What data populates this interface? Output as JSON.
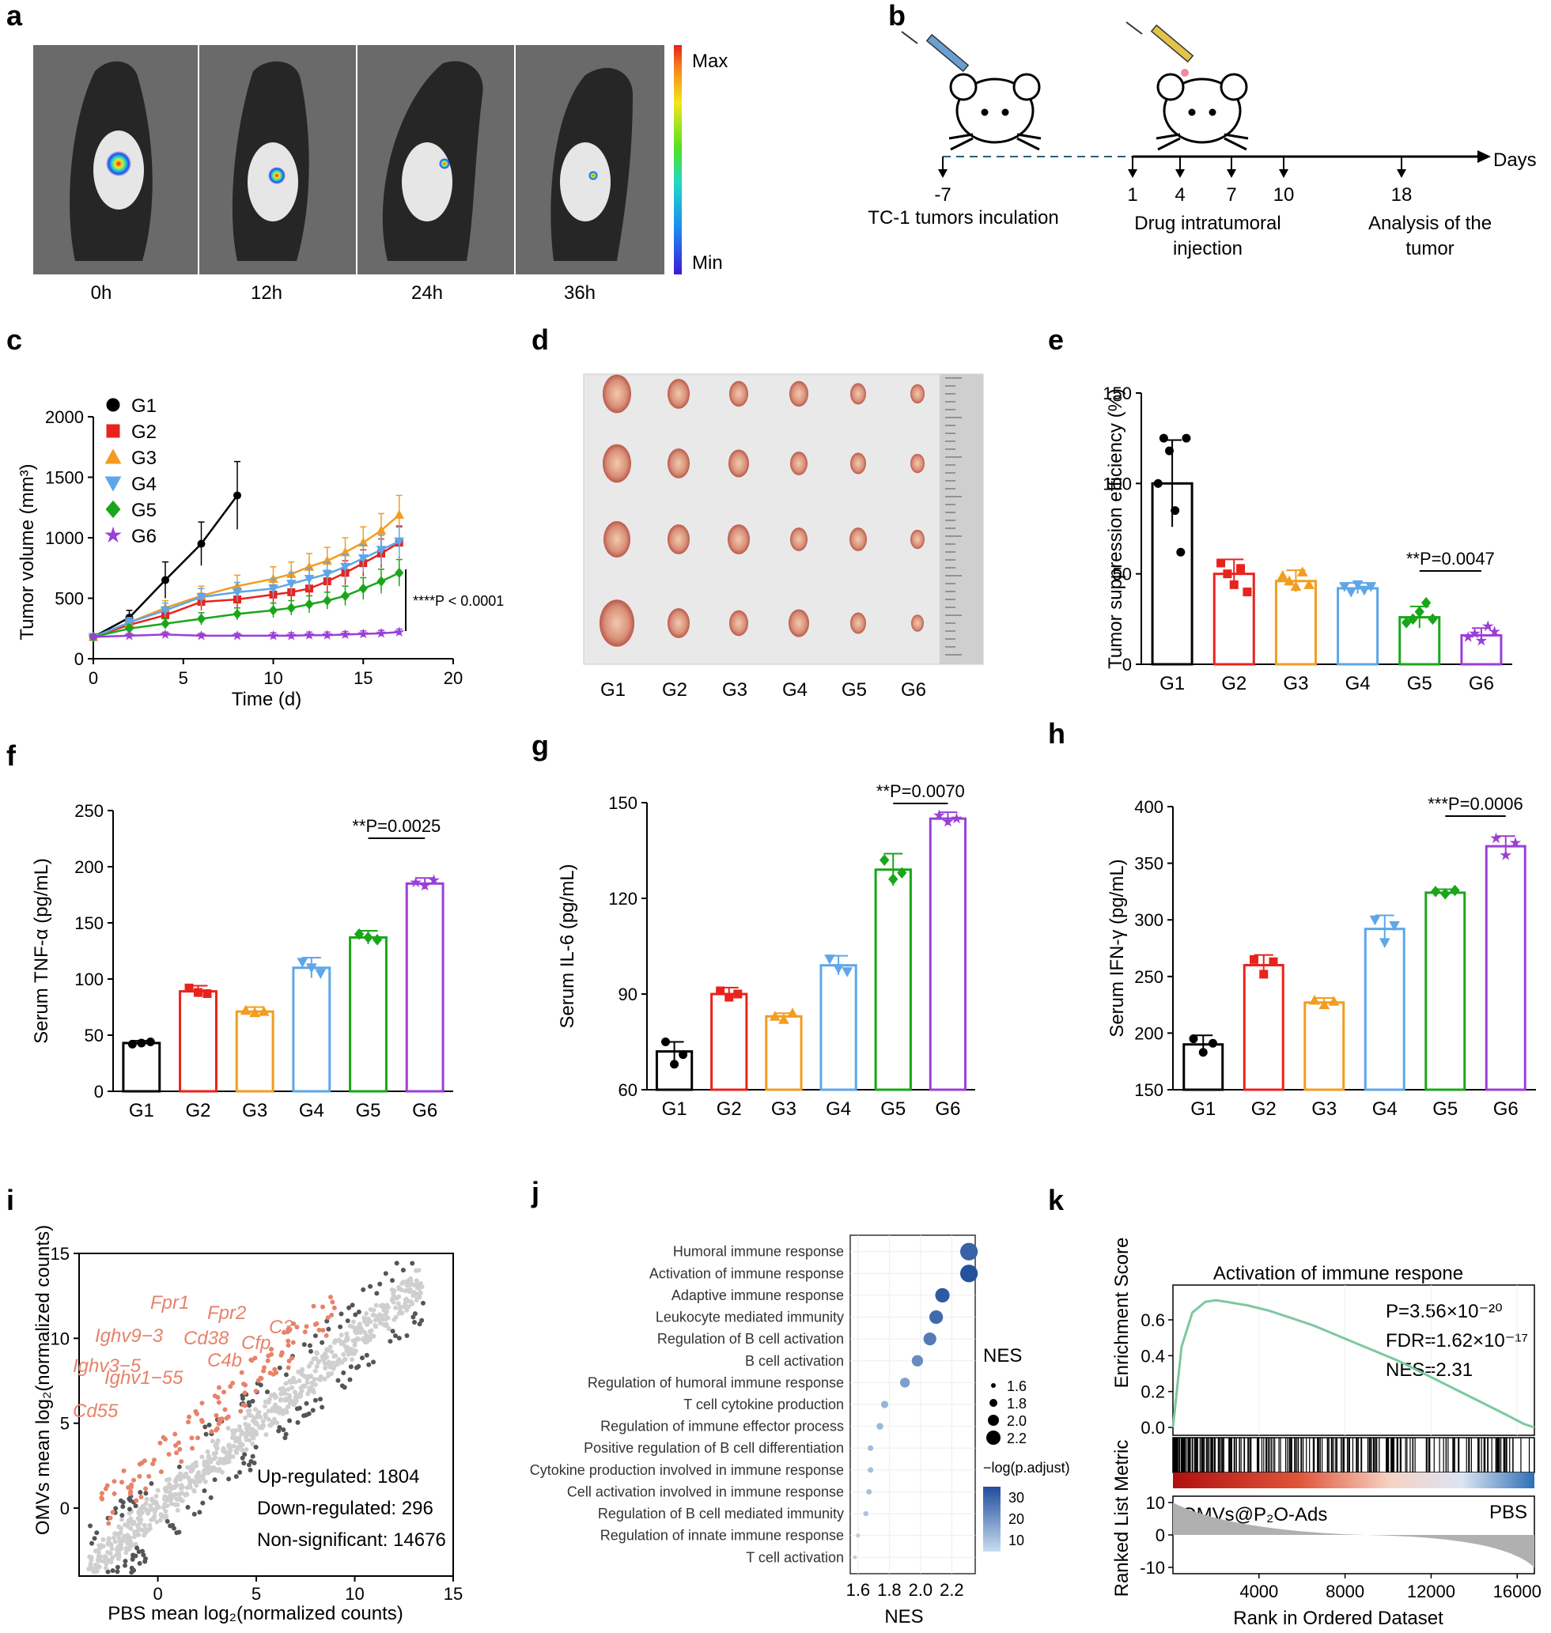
{
  "panel_labels": [
    "a",
    "b",
    "c",
    "d",
    "e",
    "f",
    "g",
    "h",
    "i",
    "j",
    "k"
  ],
  "colors": {
    "G1": "#000000",
    "G2": "#e8231c",
    "G3": "#f39c1f",
    "G4": "#5ea6e8",
    "G5": "#1aa61a",
    "G6": "#9b3fd6",
    "gsea_line": "#7cc8a0",
    "volcano_sig": "#555555",
    "volcano_ns": "#cfcfcf",
    "volcano_hl": "#e8826a"
  },
  "panel_a": {
    "time_labels": [
      "0h",
      "12h",
      "24h",
      "36h"
    ],
    "scale_max": "Max",
    "scale_min": "Min"
  },
  "panel_b": {
    "days": [
      "-7",
      "1",
      "4",
      "7",
      "10",
      "18"
    ],
    "axis_label": "Days",
    "label_inoculation": "TC-1 tumors inculation",
    "label_injection_1": "Drug intratumoral",
    "label_injection_2": "injection",
    "label_analysis_1": "Analysis of the",
    "label_analysis_2": "tumor"
  },
  "panel_d": {
    "groups": [
      "G1",
      "G2",
      "G3",
      "G4",
      "G5",
      "G6"
    ]
  },
  "chart_data": [
    {
      "panel": "c",
      "type": "line",
      "xlabel": "Time (d)",
      "ylabel": "Tumor volume (mm³)",
      "xlim": [
        0,
        20
      ],
      "ylim": [
        0,
        2000
      ],
      "xticks": [
        "0",
        "5",
        "10",
        "15",
        "20"
      ],
      "yticks": [
        "0",
        "500",
        "1000",
        "1500",
        "2000"
      ],
      "annotation": "****P < 0.0001",
      "series": [
        {
          "name": "G1",
          "marker": "circle",
          "x": [
            0,
            2,
            4,
            6,
            8
          ],
          "y": [
            180,
            340,
            650,
            950,
            1350
          ],
          "err": [
            20,
            60,
            150,
            180,
            280
          ]
        },
        {
          "name": "G2",
          "marker": "square",
          "x": [
            0,
            2,
            4,
            6,
            8,
            10,
            11,
            12,
            13,
            14,
            15,
            16,
            17
          ],
          "y": [
            180,
            280,
            360,
            470,
            490,
            530,
            550,
            580,
            640,
            710,
            790,
            870,
            960
          ],
          "err": [
            20,
            40,
            60,
            70,
            70,
            80,
            80,
            90,
            90,
            100,
            110,
            120,
            130
          ]
        },
        {
          "name": "G3",
          "marker": "triangle",
          "x": [
            0,
            2,
            4,
            6,
            8,
            10,
            11,
            12,
            13,
            14,
            15,
            16,
            17
          ],
          "y": [
            180,
            300,
            420,
            520,
            600,
            660,
            700,
            760,
            810,
            880,
            960,
            1060,
            1190
          ],
          "err": [
            20,
            40,
            60,
            80,
            90,
            100,
            100,
            110,
            110,
            120,
            130,
            140,
            160
          ]
        },
        {
          "name": "G4",
          "marker": "triangle-down",
          "x": [
            0,
            2,
            4,
            6,
            8,
            10,
            11,
            12,
            13,
            14,
            15,
            16,
            17
          ],
          "y": [
            180,
            300,
            400,
            510,
            550,
            580,
            620,
            660,
            700,
            760,
            830,
            900,
            970
          ],
          "err": [
            20,
            40,
            60,
            70,
            80,
            80,
            90,
            90,
            100,
            100,
            110,
            120,
            130
          ]
        },
        {
          "name": "G5",
          "marker": "diamond",
          "x": [
            0,
            2,
            4,
            6,
            8,
            10,
            11,
            12,
            13,
            14,
            15,
            16,
            17
          ],
          "y": [
            180,
            250,
            290,
            330,
            370,
            400,
            420,
            450,
            480,
            520,
            580,
            640,
            710
          ],
          "err": [
            20,
            30,
            40,
            50,
            50,
            60,
            60,
            70,
            70,
            80,
            90,
            100,
            110
          ]
        },
        {
          "name": "G6",
          "marker": "star",
          "x": [
            0,
            2,
            4,
            6,
            8,
            10,
            11,
            12,
            13,
            14,
            15,
            16,
            17
          ],
          "y": [
            180,
            190,
            200,
            190,
            190,
            190,
            190,
            195,
            195,
            200,
            205,
            210,
            220
          ],
          "err": [
            20,
            20,
            20,
            20,
            20,
            25,
            25,
            25,
            25,
            25,
            25,
            25,
            25
          ]
        }
      ]
    },
    {
      "panel": "e",
      "type": "bar",
      "ylabel": "Tumor suppression efficiency (%)",
      "categories": [
        "G1",
        "G2",
        "G3",
        "G4",
        "G5",
        "G6"
      ],
      "values": [
        100,
        50,
        46,
        42,
        26,
        16
      ],
      "err": [
        24,
        8,
        6,
        3,
        6,
        4
      ],
      "ylim": [
        0,
        150
      ],
      "yticks": [
        "0",
        "50",
        "100",
        "150"
      ],
      "annotation": "**P=0.0047",
      "annotation_pair": [
        "G5",
        "G6"
      ],
      "points": [
        [
          100,
          125,
          118,
          85,
          62,
          125
        ],
        [
          56,
          50,
          44,
          53,
          40
        ],
        [
          49,
          46,
          43,
          51,
          44
        ],
        [
          43,
          40,
          44,
          41,
          43
        ],
        [
          23,
          25,
          29,
          34,
          25
        ],
        [
          15,
          17,
          13,
          21,
          18
        ]
      ]
    },
    {
      "panel": "f",
      "type": "bar",
      "ylabel": "Serum TNF-α (pg/mL)",
      "categories": [
        "G1",
        "G2",
        "G3",
        "G4",
        "G5",
        "G6"
      ],
      "values": [
        43,
        89,
        71,
        110,
        137,
        185
      ],
      "err": [
        2,
        5,
        4,
        9,
        6,
        5
      ],
      "ylim": [
        0,
        250
      ],
      "yticks": [
        "0",
        "50",
        "100",
        "150",
        "200",
        "250"
      ],
      "annotation": "**P=0.0025",
      "annotation_pair": [
        "G5",
        "G6"
      ],
      "points": [
        [
          42,
          43,
          44
        ],
        [
          92,
          88,
          87
        ],
        [
          72,
          70,
          71
        ],
        [
          115,
          110,
          105
        ],
        [
          140,
          137,
          135
        ],
        [
          186,
          183,
          188
        ]
      ]
    },
    {
      "panel": "g",
      "type": "bar",
      "ylabel": "Serum IL-6 (pg/mL)",
      "categories": [
        "G1",
        "G2",
        "G3",
        "G4",
        "G5",
        "G6"
      ],
      "values": [
        72,
        90,
        83,
        99,
        129,
        145
      ],
      "err": [
        3,
        2,
        1,
        3,
        5,
        2
      ],
      "ylim": [
        60,
        150
      ],
      "yticks": [
        "60",
        "90",
        "120",
        "150"
      ],
      "annotation": "**P=0.0070",
      "annotation_pair": [
        "G5",
        "G6"
      ],
      "points": [
        [
          75,
          68,
          71
        ],
        [
          91,
          89,
          90
        ],
        [
          83,
          82,
          84
        ],
        [
          101,
          98,
          97
        ],
        [
          132,
          126,
          128
        ],
        [
          146,
          144,
          145
        ]
      ]
    },
    {
      "panel": "h",
      "type": "bar",
      "ylabel": "Serum IFN-γ (pg/mL)",
      "categories": [
        "G1",
        "G2",
        "G3",
        "G4",
        "G5",
        "G6"
      ],
      "values": [
        190,
        260,
        227,
        292,
        324,
        365
      ],
      "err": [
        8,
        9,
        4,
        12,
        3,
        9
      ],
      "ylim": [
        150,
        400
      ],
      "yticks": [
        "150",
        "200",
        "250",
        "300",
        "350",
        "400"
      ],
      "annotation": "***P=0.0006",
      "annotation_pair": [
        "G5",
        "G6"
      ],
      "points": [
        [
          195,
          183,
          191
        ],
        [
          265,
          252,
          263
        ],
        [
          229,
          225,
          228
        ],
        [
          300,
          280,
          295
        ],
        [
          325,
          323,
          326
        ],
        [
          372,
          357,
          368
        ]
      ]
    },
    {
      "panel": "i",
      "type": "scatter",
      "xlabel": "PBS mean log₂(normalized counts)",
      "ylabel": "OMVs mean log₂(normalized counts)",
      "xlim": [
        -4,
        15
      ],
      "ylim": [
        -4,
        15
      ],
      "xticks": [
        "0",
        "5",
        "10",
        "15"
      ],
      "yticks": [
        "0",
        "5",
        "10",
        "15"
      ],
      "up_regulated": "Up-regulated: 1804",
      "down_regulated": "Down-regulated: 296",
      "non_significant": "Non-significant: 14676",
      "gene_labels": [
        "Fpr1",
        "Fpr2",
        "C3",
        "Ighv9−3",
        "Cd38",
        "Cfp",
        "C4b",
        "Ighv3−5",
        "Ighv1−55",
        "Cd55"
      ]
    },
    {
      "panel": "j",
      "type": "scatter",
      "xlabel": "NES",
      "terms": [
        "Humoral immune response",
        "Activation of immune response",
        "Adaptive immune response",
        "Leukocyte mediated immunity",
        "Regulation of B cell activation",
        "B cell activation",
        "Regulation of humoral immune response",
        "T cell cytokine production",
        "Regulation of immune effector process",
        "Positive regulation of B cell differentiation",
        "Cytokine production involved in immune response",
        "Cell activation involved in immune response",
        "Regulation of B cell mediated immunity",
        "Regulation of innate immune response",
        "T cell activation"
      ],
      "nes": [
        2.31,
        2.31,
        2.14,
        2.1,
        2.06,
        1.98,
        1.9,
        1.77,
        1.74,
        1.68,
        1.68,
        1.67,
        1.65,
        1.6,
        1.58
      ],
      "neglog_padj": [
        30,
        34,
        32,
        28,
        24,
        20,
        15,
        10,
        9,
        8,
        7,
        7,
        6,
        4,
        3
      ],
      "xlim": [
        1.55,
        2.35
      ],
      "xticks": [
        "1.6",
        "1.8",
        "2.0",
        "2.2"
      ],
      "size_legend_title": "NES",
      "size_legend_values": [
        "1.6",
        "1.8",
        "2.0",
        "2.2"
      ],
      "color_legend_title": "−log(p.adjust)",
      "color_legend_values": [
        "10",
        "20",
        "30"
      ]
    },
    {
      "panel": "k",
      "type": "line",
      "title": "Activation of immune respone",
      "ylabel_top": "Enrichment Score",
      "ylabel_bottom": "Ranked List Metric",
      "xlabel": "Rank in Ordered Dataset",
      "stat_p": "P=3.56×10⁻²⁰",
      "stat_fdr": "FDR=1.62×10⁻¹⁷",
      "stat_nes": "NES=2.31",
      "left_label": "OMVs@P₂O-Ads",
      "right_label": "PBS",
      "xlim": [
        0,
        16800
      ],
      "xticks": [
        "4000",
        "8000",
        "12000",
        "16000"
      ],
      "es_yticks": [
        "0.0",
        "0.2",
        "0.4",
        "0.6"
      ],
      "metric_yticks": [
        "10",
        "0",
        "-10"
      ],
      "es_x": [
        0,
        400,
        900,
        1500,
        2000,
        2500,
        3500,
        4500,
        5500,
        6500,
        7500,
        8500,
        9500,
        10500,
        11500,
        12500,
        13500,
        14500,
        15500,
        16300,
        16800
      ],
      "es_y": [
        0.0,
        0.45,
        0.64,
        0.7,
        0.71,
        0.7,
        0.68,
        0.65,
        0.61,
        0.57,
        0.52,
        0.47,
        0.42,
        0.37,
        0.31,
        0.25,
        0.19,
        0.13,
        0.07,
        0.02,
        0.0
      ]
    }
  ]
}
